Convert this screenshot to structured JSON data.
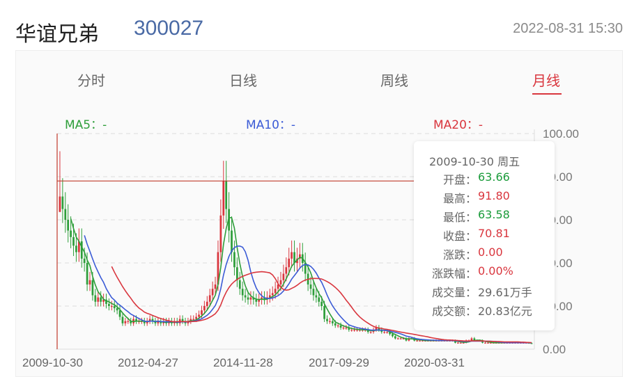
{
  "header": {
    "stock_name": "华谊兄弟",
    "stock_code": "300027",
    "datetime": "2022-08-31 15:30"
  },
  "tabs": [
    {
      "label": "分时",
      "active": false
    },
    {
      "label": "日线",
      "active": false
    },
    {
      "label": "周线",
      "active": false
    },
    {
      "label": "月线",
      "active": true
    }
  ],
  "ma_legend": {
    "ma5": {
      "label": "MA5：-",
      "color": "#2e9e3a"
    },
    "ma10": {
      "label": "MA10：-",
      "color": "#3b5bd6"
    },
    "ma20": {
      "label": "MA20：-",
      "color": "#d9363e"
    }
  },
  "tooltip": {
    "date": "2009-10-30  周五",
    "rows": [
      {
        "label": "开盘：",
        "value": "63.66",
        "color": "green"
      },
      {
        "label": "最高：",
        "value": "91.80",
        "color": "red"
      },
      {
        "label": "最低：",
        "value": "63.58",
        "color": "green"
      },
      {
        "label": "收盘：",
        "value": "70.81",
        "color": "red"
      },
      {
        "label": "涨跌：",
        "value": "0.00",
        "color": "red"
      },
      {
        "label": "涨跌幅：",
        "value": "0.00%",
        "color": "red"
      },
      {
        "label": "成交量：",
        "value": "29.61万手",
        "color": "plain"
      },
      {
        "label": "成交额：",
        "value": "20.83亿元",
        "color": "plain"
      }
    ]
  },
  "chart_data": {
    "type": "candlestick",
    "x_tick_labels": [
      "2009-10-30",
      "2012-04-27",
      "2014-11-28",
      "2017-09-29",
      "2020-03-31"
    ],
    "y_tick_labels": [
      "100.00",
      "80.00",
      "60.00",
      "40.00",
      "20.00",
      "0.00"
    ],
    "ylim": [
      0,
      100
    ],
    "crosshair_price": 78,
    "colors": {
      "up": "#d9363e",
      "down": "#2e9e3a",
      "ma5": "#2e9e3a",
      "ma10": "#3b5bd6",
      "ma20": "#d9363e"
    },
    "close_series": [
      70.8,
      65,
      60,
      55,
      52,
      48,
      45,
      50,
      42,
      40,
      30,
      32,
      25,
      22,
      24,
      22,
      23,
      21,
      20,
      20,
      19,
      18,
      15,
      12,
      13,
      13,
      12,
      14,
      13,
      13,
      13,
      12,
      13,
      14,
      13,
      12,
      13,
      12,
      13,
      12,
      13,
      12,
      13,
      12,
      14,
      13,
      12,
      13,
      14,
      14,
      15,
      16,
      18,
      20,
      22,
      25,
      28,
      30,
      45,
      62,
      78,
      65,
      55,
      45,
      38,
      32,
      28,
      25,
      24,
      23,
      24,
      23,
      22,
      23,
      24,
      23,
      24,
      25,
      26,
      28,
      30,
      32,
      35,
      38,
      42,
      45,
      40,
      42,
      44,
      40,
      35,
      30,
      28,
      25,
      24,
      22,
      20,
      14,
      13,
      13,
      12,
      11,
      11,
      10,
      10,
      10,
      9,
      9,
      9,
      9,
      9,
      9,
      9,
      8,
      8,
      9,
      10,
      9,
      8,
      8,
      8,
      7,
      6,
      5,
      5,
      5,
      5,
      4,
      5,
      5,
      4,
      4,
      4,
      4,
      4,
      4,
      4,
      4,
      4,
      4,
      4,
      4,
      4,
      4,
      4,
      3,
      3,
      3,
      3,
      4,
      4,
      5,
      4,
      4,
      4,
      3,
      3,
      3,
      3,
      3,
      3,
      3,
      3,
      3,
      3,
      3,
      3,
      3,
      3,
      3,
      3,
      3,
      2.8,
      2.7
    ]
  }
}
